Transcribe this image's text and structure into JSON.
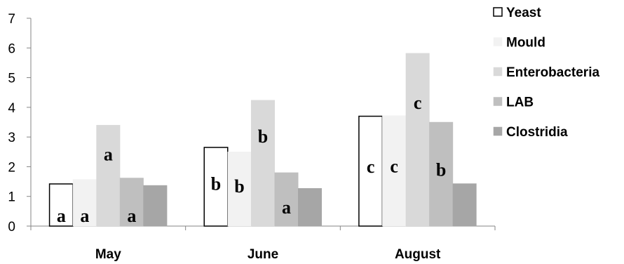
{
  "chart_data": {
    "type": "bar",
    "categories": [
      "May",
      "June",
      "August"
    ],
    "ylim": [
      0,
      7
    ],
    "yticks": [
      "0",
      "1",
      "2",
      "3",
      "4",
      "5",
      "6",
      "7"
    ],
    "legend_position": "right",
    "series": [
      {
        "name": "Yeast",
        "color": "#ffffff",
        "stroke": "#000000",
        "values": [
          1.42,
          2.65,
          3.7
        ],
        "annotations": [
          "a",
          "b",
          "c"
        ]
      },
      {
        "name": "Mould",
        "color": "#f2f2f2",
        "stroke": "#f2f2f2",
        "values": [
          1.57,
          2.5,
          3.72
        ],
        "annotations": [
          "a",
          "b",
          "c"
        ]
      },
      {
        "name": "Enterobacteria",
        "color": "#d9d9d9",
        "stroke": "#d9d9d9",
        "values": [
          3.4,
          4.24,
          5.82
        ],
        "annotations": [
          "a",
          "b",
          "c"
        ]
      },
      {
        "name": "LAB",
        "color": "#bfbfbf",
        "stroke": "#bfbfbf",
        "values": [
          1.62,
          1.8,
          3.5
        ],
        "annotations": [
          "a",
          "a",
          "b"
        ]
      },
      {
        "name": "Clostridia",
        "color": "#a6a6a6",
        "stroke": "#a6a6a6",
        "values": [
          1.37,
          1.27,
          1.43
        ],
        "annotations": [
          "",
          "",
          ""
        ]
      }
    ]
  }
}
